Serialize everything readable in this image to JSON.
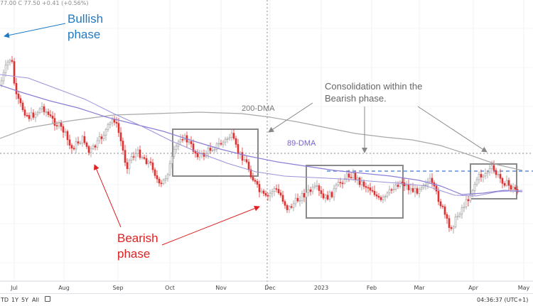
{
  "ticker_header": "77.00 C 77.50 +0.41 (+0.56%)",
  "chart_data": {
    "type": "candlestick",
    "title": "",
    "x_tick_labels": [
      "Jul",
      "Aug",
      "Sep",
      "Oct",
      "Nov",
      "Dec",
      "2023",
      "Feb",
      "Mar",
      "Apr",
      "May"
    ],
    "grid": true,
    "series": [
      {
        "name": "200-DMA",
        "color": "#a8a8a8"
      },
      {
        "name": "89-DMA",
        "color": "#8a7fd6"
      }
    ],
    "colors": {
      "up": "#9a9a9a",
      "down": "#e03030",
      "box": "#8a8a8a",
      "resistance": "#3a78d8"
    }
  },
  "annotations": {
    "bullish": "Bullish\nphase",
    "bearish": "Bearish\nphase",
    "consolidation": "Consolidation within the\nBearish phase.",
    "dma200": "200-DMA",
    "dma89": "89-DMA"
  },
  "colors": {
    "bullish": "#1f7ac4",
    "bearish": "#e02020",
    "consolidation": "#666666",
    "dma89_label": "#7a5fd0",
    "dma200_label": "#777777"
  },
  "bottom_bar": {
    "ranges": [
      "TD",
      "1Y",
      "5Y",
      "All"
    ],
    "clock": "04:36:37 (UTC+1)"
  }
}
